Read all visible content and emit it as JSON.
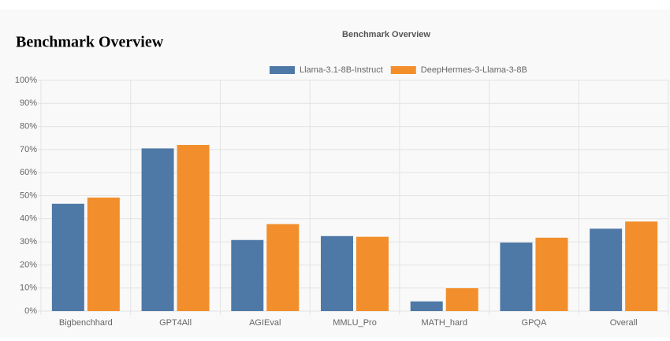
{
  "heading": "Benchmark Overview",
  "chart_data": {
    "type": "bar",
    "title": "Benchmark Overview",
    "categories": [
      "Bigbenchhard",
      "GPT4All",
      "AGIEval",
      "MMLU_Pro",
      "MATH_hard",
      "GPQA",
      "Overall"
    ],
    "series": [
      {
        "name": "Llama-3.1-8B-Instruct",
        "color": "#4e79a7",
        "values": [
          46.5,
          70.5,
          30.8,
          32.5,
          4.2,
          29.7,
          35.7
        ]
      },
      {
        "name": "DeepHermes-3-Llama-3-8B",
        "color": "#f28e2b",
        "values": [
          49.2,
          72.0,
          37.7,
          32.2,
          9.9,
          31.8,
          38.8
        ]
      }
    ],
    "ylim": [
      0,
      100
    ],
    "yticks": [
      {
        "value": 0,
        "label": "0%"
      },
      {
        "value": 10,
        "label": "10%"
      },
      {
        "value": 20,
        "label": "20%"
      },
      {
        "value": 30,
        "label": "30%"
      },
      {
        "value": 40,
        "label": "40%"
      },
      {
        "value": 50,
        "label": "50%"
      },
      {
        "value": 60,
        "label": "60%"
      },
      {
        "value": 70,
        "label": "70%"
      },
      {
        "value": 80,
        "label": "80%"
      },
      {
        "value": 90,
        "label": "90%"
      },
      {
        "value": 100,
        "label": "100%"
      }
    ],
    "grid": true,
    "legend": "top"
  }
}
